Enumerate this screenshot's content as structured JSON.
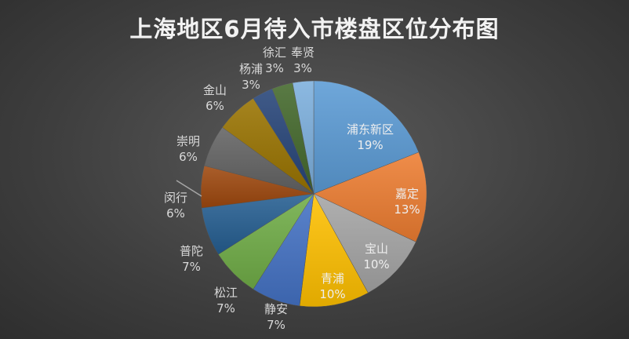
{
  "chart_data": {
    "type": "pie",
    "title": "上海地区6月待入市楼盘区位分布图",
    "categories": [
      "浦东新区",
      "嘉定",
      "宝山",
      "青浦",
      "静安",
      "松江",
      "普陀",
      "闵行",
      "崇明",
      "金山",
      "杨浦",
      "徐汇",
      "奉贤"
    ],
    "values": [
      19,
      13,
      10,
      10,
      7,
      7,
      7,
      6,
      6,
      6,
      3,
      3,
      3
    ],
    "labels": [
      "19%",
      "13%",
      "10%",
      "10%",
      "7%",
      "7%",
      "7%",
      "6%",
      "6%",
      "6%",
      "3%",
      "3%",
      "3%"
    ],
    "colors": [
      "#5b9bd5",
      "#ed7d31",
      "#a5a5a5",
      "#ffc000",
      "#4472c4",
      "#70ad47",
      "#255e91",
      "#9e480e",
      "#636363",
      "#997300",
      "#264478",
      "#43682b",
      "#7cafdd"
    ],
    "legend": "none"
  }
}
